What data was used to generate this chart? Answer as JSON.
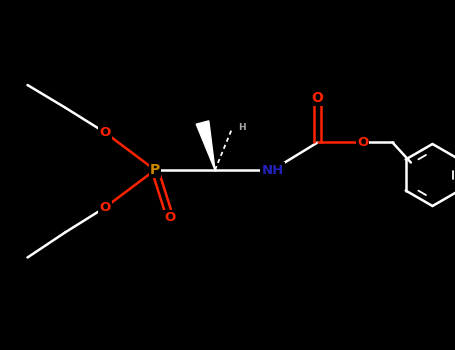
{
  "background_color": "#000000",
  "bond_color": "#ffffff",
  "atom_colors": {
    "O": "#ff2200",
    "N": "#2222bb",
    "P": "#cc8800",
    "C": "#ffffff"
  },
  "figsize": [
    4.55,
    3.5
  ],
  "dpi": 100,
  "xlim": [
    0,
    9.1
  ],
  "ylim": [
    0,
    7.0
  ]
}
